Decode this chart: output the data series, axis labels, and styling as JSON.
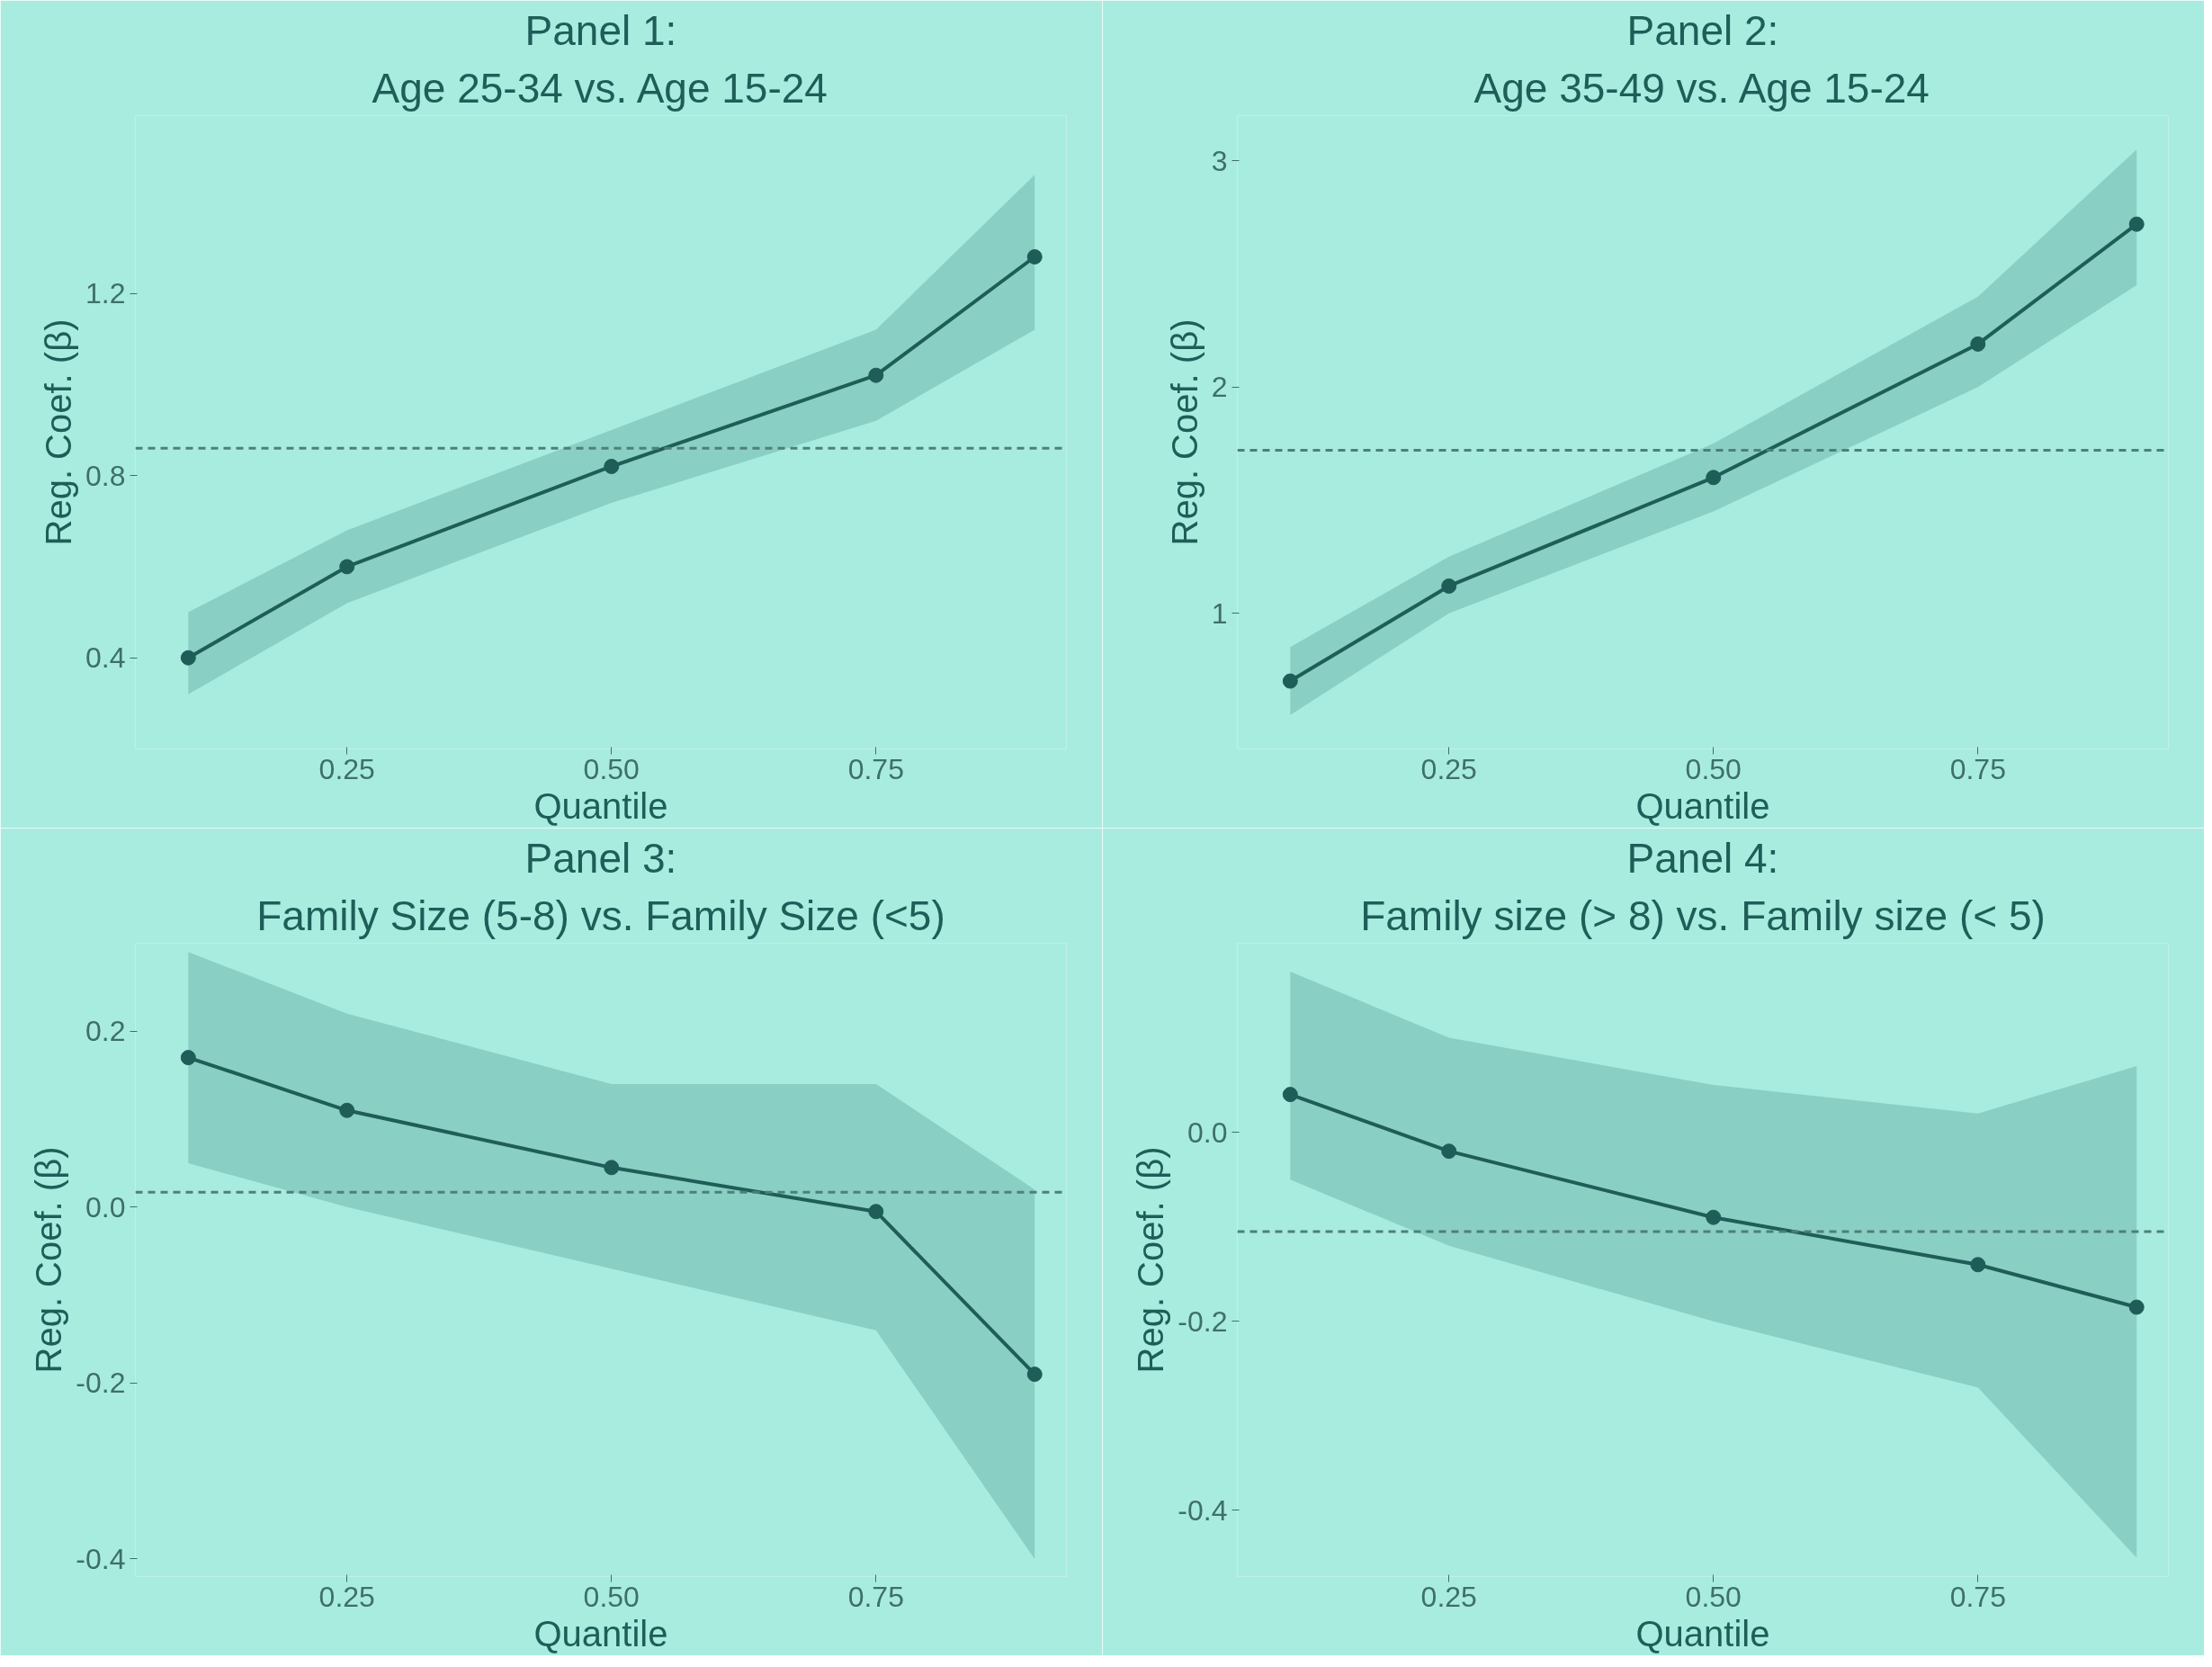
{
  "chart_data": [
    {
      "type": "line",
      "title": "Panel 1:",
      "subtitle": "Age 25-34 vs. Age 15-24",
      "xlabel": "Quantile",
      "ylabel": "Reg. Coef. (β)",
      "x": [
        0.1,
        0.25,
        0.5,
        0.75,
        0.9
      ],
      "series": [
        {
          "color": "#1f5e58",
          "values": [
            0.4,
            0.6,
            0.82,
            1.02,
            1.28
          ],
          "lower": [
            0.32,
            0.52,
            0.74,
            0.92,
            1.12
          ],
          "upper": [
            0.5,
            0.68,
            0.9,
            1.12,
            1.46
          ]
        }
      ],
      "xlim": [
        0.05,
        0.93
      ],
      "ylim": [
        0.2,
        1.59
      ],
      "xticks": [
        {
          "value": 0.25,
          "label": "0.25"
        },
        {
          "value": 0.5,
          "label": "0.50"
        },
        {
          "value": 0.75,
          "label": "0.75"
        }
      ],
      "yticks": [
        0.4,
        0.8,
        1.2
      ],
      "ref_lines": [
        {
          "axis": "y",
          "value": 0.86,
          "color": "#4f7f79",
          "line_style": "dashed"
        }
      ],
      "marker": "circle",
      "grid": false
    },
    {
      "type": "line",
      "title": "Panel 2:",
      "subtitle": "Age 35-49 vs. Age 15-24",
      "xlabel": "Quantile",
      "ylabel": "Reg. Coef. (β)",
      "x": [
        0.1,
        0.25,
        0.5,
        0.75,
        0.9
      ],
      "series": [
        {
          "color": "#1f5e58",
          "values": [
            0.7,
            1.12,
            1.6,
            2.19,
            2.72
          ],
          "lower": [
            0.55,
            1.0,
            1.45,
            2.0,
            2.45
          ],
          "upper": [
            0.85,
            1.25,
            1.75,
            2.4,
            3.05
          ]
        }
      ],
      "xlim": [
        0.05,
        0.93
      ],
      "ylim": [
        0.4,
        3.2
      ],
      "xticks": [
        {
          "value": 0.25,
          "label": "0.25"
        },
        {
          "value": 0.5,
          "label": "0.50"
        },
        {
          "value": 0.75,
          "label": "0.75"
        }
      ],
      "yticks": [
        1,
        2,
        3
      ],
      "ref_lines": [
        {
          "axis": "y",
          "value": 1.72,
          "color": "#4f7f79",
          "line_style": "dashed"
        }
      ],
      "marker": "circle",
      "grid": false
    },
    {
      "type": "line",
      "title": "Panel 3:",
      "subtitle": "Family Size (5-8) vs. Family Size (<5)",
      "xlabel": "Quantile",
      "ylabel": "Reg. Coef. (β)",
      "x": [
        0.1,
        0.25,
        0.5,
        0.75,
        0.9
      ],
      "series": [
        {
          "color": "#1f5e58",
          "values": [
            0.17,
            0.11,
            0.045,
            -0.005,
            -0.19
          ],
          "lower": [
            0.05,
            0.0,
            -0.07,
            -0.14,
            -0.4
          ],
          "upper": [
            0.29,
            0.22,
            0.14,
            0.14,
            0.02
          ]
        }
      ],
      "xlim": [
        0.05,
        0.93
      ],
      "ylim": [
        -0.42,
        0.3
      ],
      "xticks": [
        {
          "value": 0.25,
          "label": "0.25"
        },
        {
          "value": 0.5,
          "label": "0.50"
        },
        {
          "value": 0.75,
          "label": "0.75"
        }
      ],
      "yticks": [
        {
          "value": -0.4,
          "label": "-0.4"
        },
        {
          "value": -0.2,
          "label": "-0.2"
        },
        {
          "value": 0,
          "label": "0.0"
        },
        {
          "value": 0.2,
          "label": "0.2"
        }
      ],
      "ref_lines": [
        {
          "axis": "y",
          "value": 0.017,
          "color": "#4f7f79",
          "line_style": "dashed"
        }
      ],
      "marker": "circle",
      "grid": false
    },
    {
      "type": "line",
      "title": "Panel 4:",
      "subtitle": "Family size (> 8) vs. Family size (< 5)",
      "xlabel": "Quantile",
      "ylabel": "Reg. Coef. (β)",
      "x": [
        0.1,
        0.25,
        0.5,
        0.75,
        0.9
      ],
      "series": [
        {
          "color": "#1f5e58",
          "values": [
            0.04,
            -0.02,
            -0.09,
            -0.14,
            -0.185
          ],
          "lower": [
            -0.05,
            -0.12,
            -0.2,
            -0.27,
            -0.45
          ],
          "upper": [
            0.17,
            0.1,
            0.05,
            0.02,
            0.07
          ]
        }
      ],
      "xlim": [
        0.05,
        0.93
      ],
      "ylim": [
        -0.47,
        0.2
      ],
      "xticks": [
        {
          "value": 0.25,
          "label": "0.25"
        },
        {
          "value": 0.5,
          "label": "0.50"
        },
        {
          "value": 0.75,
          "label": "0.75"
        }
      ],
      "yticks": [
        {
          "value": -0.4,
          "label": "-0.4"
        },
        {
          "value": -0.2,
          "label": "-0.2"
        },
        {
          "value": 0,
          "label": "0.0"
        }
      ],
      "ref_lines": [
        {
          "axis": "y",
          "value": -0.105,
          "color": "#4f7f79",
          "line_style": "dashed"
        }
      ],
      "marker": "circle",
      "grid": false
    }
  ]
}
